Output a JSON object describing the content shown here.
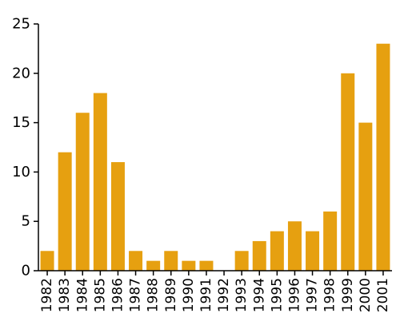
{
  "chart_data": {
    "type": "bar",
    "categories": [
      "1982",
      "1983",
      "1984",
      "1985",
      "1986",
      "1987",
      "1988",
      "1989",
      "1990",
      "1991",
      "1992",
      "1993",
      "1994",
      "1995",
      "1996",
      "1997",
      "1998",
      "1999",
      "2000",
      "2001"
    ],
    "values": [
      2,
      12,
      16,
      18,
      11,
      2,
      1,
      2,
      1,
      1,
      0,
      2,
      3,
      4,
      5,
      4,
      6,
      20,
      15,
      23
    ],
    "title": "",
    "xlabel": "",
    "ylabel": "",
    "ylim": [
      0,
      25
    ],
    "yticks": [
      0,
      5,
      10,
      15,
      20,
      25
    ],
    "grid": false,
    "bar_color": "#e6a010",
    "axis_color": "#000000"
  }
}
